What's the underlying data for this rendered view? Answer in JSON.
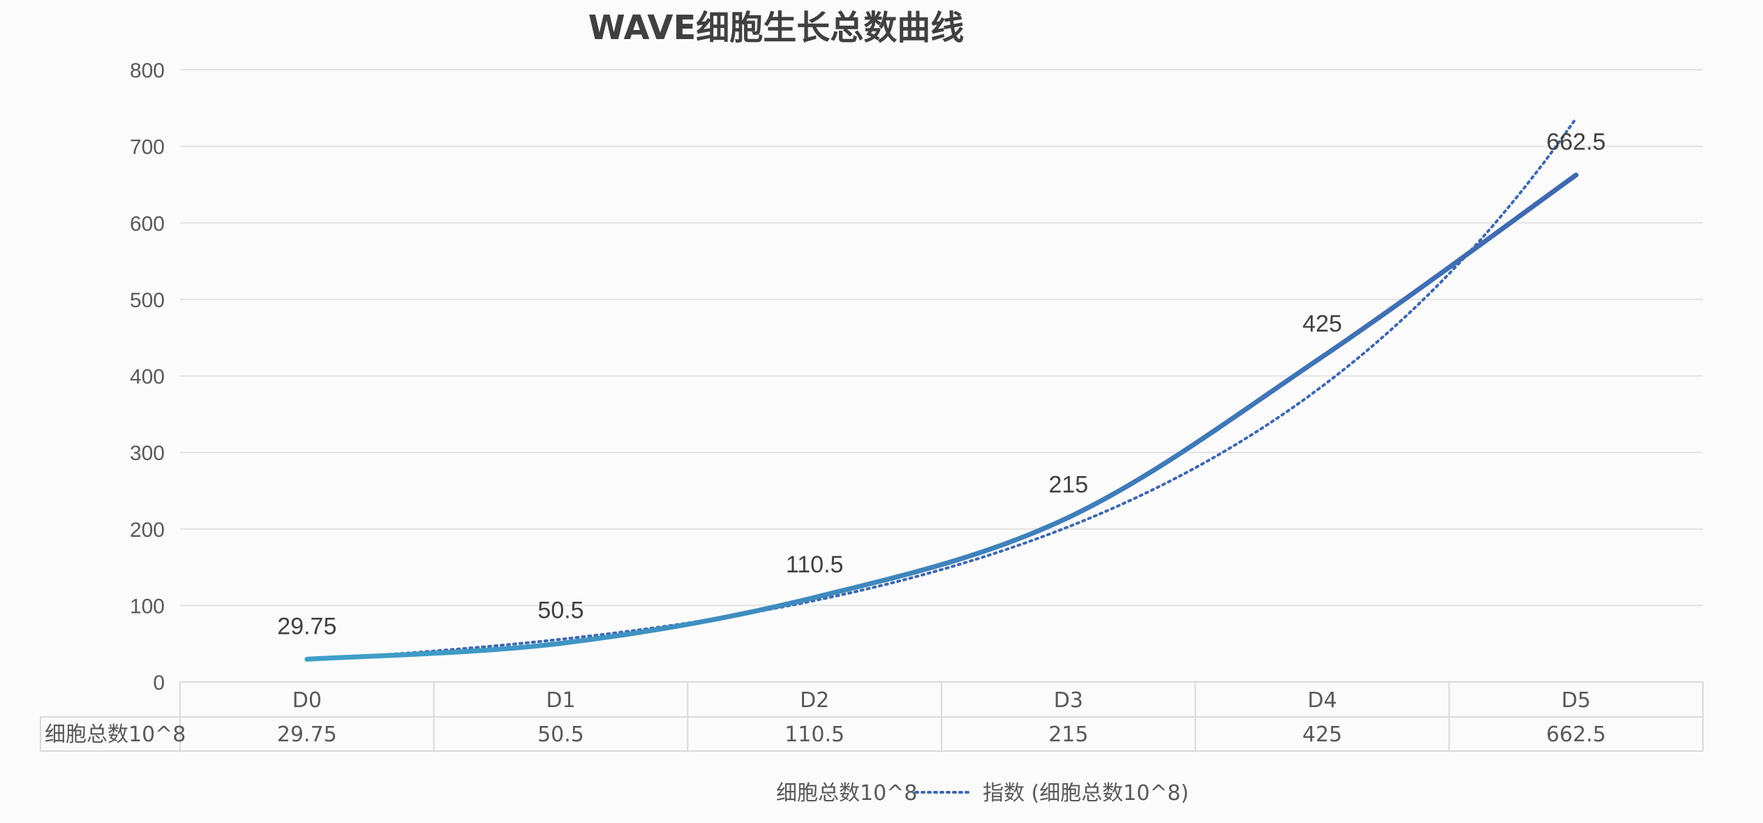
{
  "chart_data": {
    "type": "line",
    "title": "WAVE细胞生长总数曲线",
    "categories": [
      "D0",
      "D1",
      "D2",
      "D3",
      "D4",
      "D5"
    ],
    "series": [
      {
        "name": "细胞总数10^8",
        "values": [
          29.75,
          50.5,
          110.5,
          215,
          425,
          662.5
        ],
        "color_start": "#3fa0c8",
        "color_end": "#3f68b0"
      }
    ],
    "trendline": {
      "name": "指数 (细胞总数10^8)",
      "type": "exponential",
      "color": "#3f68b0"
    },
    "data_labels": [
      "29.75",
      "50.5",
      "110.5",
      "215",
      "425",
      "662.5"
    ],
    "yaxis": {
      "min": 0,
      "max": 800,
      "ticks": [
        "0",
        "100",
        "200",
        "300",
        "400",
        "500",
        "600",
        "700",
        "800"
      ]
    },
    "data_table": {
      "row_header": "细胞总数10^8",
      "values": [
        "29.75",
        "50.5",
        "110.5",
        "215",
        "425",
        "662.5"
      ]
    },
    "legend": {
      "position": "bottom",
      "entries": [
        "细胞总数10^8",
        "指数 (细胞总数10^8)"
      ]
    },
    "grid": true
  }
}
